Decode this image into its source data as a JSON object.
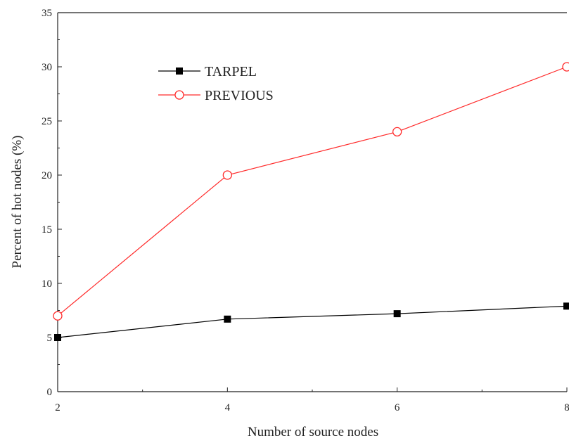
{
  "chart_data": {
    "type": "line",
    "title": "",
    "xlabel": "Number of source nodes",
    "ylabel": "Percent of hot nodes (%)",
    "xlim": [
      2,
      8
    ],
    "ylim": [
      0,
      35
    ],
    "x_ticks": [
      "2",
      "4",
      "6",
      "8"
    ],
    "y_ticks": [
      "0",
      "5",
      "10",
      "15",
      "20",
      "25",
      "30",
      "35"
    ],
    "x": [
      2,
      4,
      6,
      8
    ],
    "series": [
      {
        "name": "TARPEL",
        "values": [
          5.0,
          6.7,
          7.2,
          7.9
        ],
        "color": "#000000",
        "marker": "filled-square"
      },
      {
        "name": "PREVIOUS",
        "values": [
          7.0,
          20.0,
          24.0,
          30.0
        ],
        "color": "#ff2a2a",
        "marker": "open-circle"
      }
    ],
    "grid": false,
    "legend_position": "top-left"
  }
}
